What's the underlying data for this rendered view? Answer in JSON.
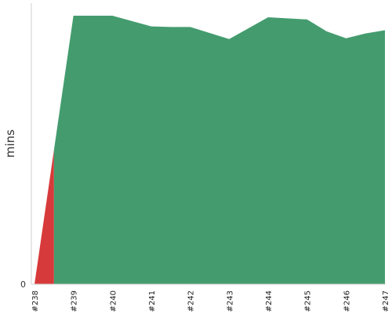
{
  "chart_data": {
    "type": "area",
    "ylabel": "mins",
    "xlabel": "",
    "title": "",
    "x": [
      "#238",
      "#238.5",
      "#239",
      "#240",
      "#241",
      "#241.5",
      "#242",
      "#243",
      "#244",
      "#245",
      "#245.5",
      "#246",
      "#246.5",
      "#247"
    ],
    "categories": [
      "#238",
      "#239",
      "#240",
      "#241",
      "#242",
      "#243",
      "#244",
      "#245",
      "#246",
      "#247"
    ],
    "yticks": [
      0
    ],
    "ylim": [
      0,
      100
    ],
    "series": [
      {
        "status": "failed",
        "color": "#d73a3a",
        "points": [
          [
            238,
            0
          ],
          [
            238.5,
            50
          ],
          [
            238.5,
            0
          ]
        ]
      },
      {
        "status": "passed",
        "color": "#449c6e",
        "points": [
          [
            238.5,
            0
          ],
          [
            238.5,
            50
          ],
          [
            239,
            100
          ],
          [
            240,
            100
          ],
          [
            241,
            96
          ],
          [
            241.5,
            95.8
          ],
          [
            242,
            95.8
          ],
          [
            243,
            91.3
          ],
          [
            244,
            99.4
          ],
          [
            245,
            98.6
          ],
          [
            245.5,
            94.2
          ],
          [
            246,
            91.6
          ],
          [
            246.5,
            93.4
          ],
          [
            247,
            94.6
          ]
        ]
      }
    ]
  }
}
